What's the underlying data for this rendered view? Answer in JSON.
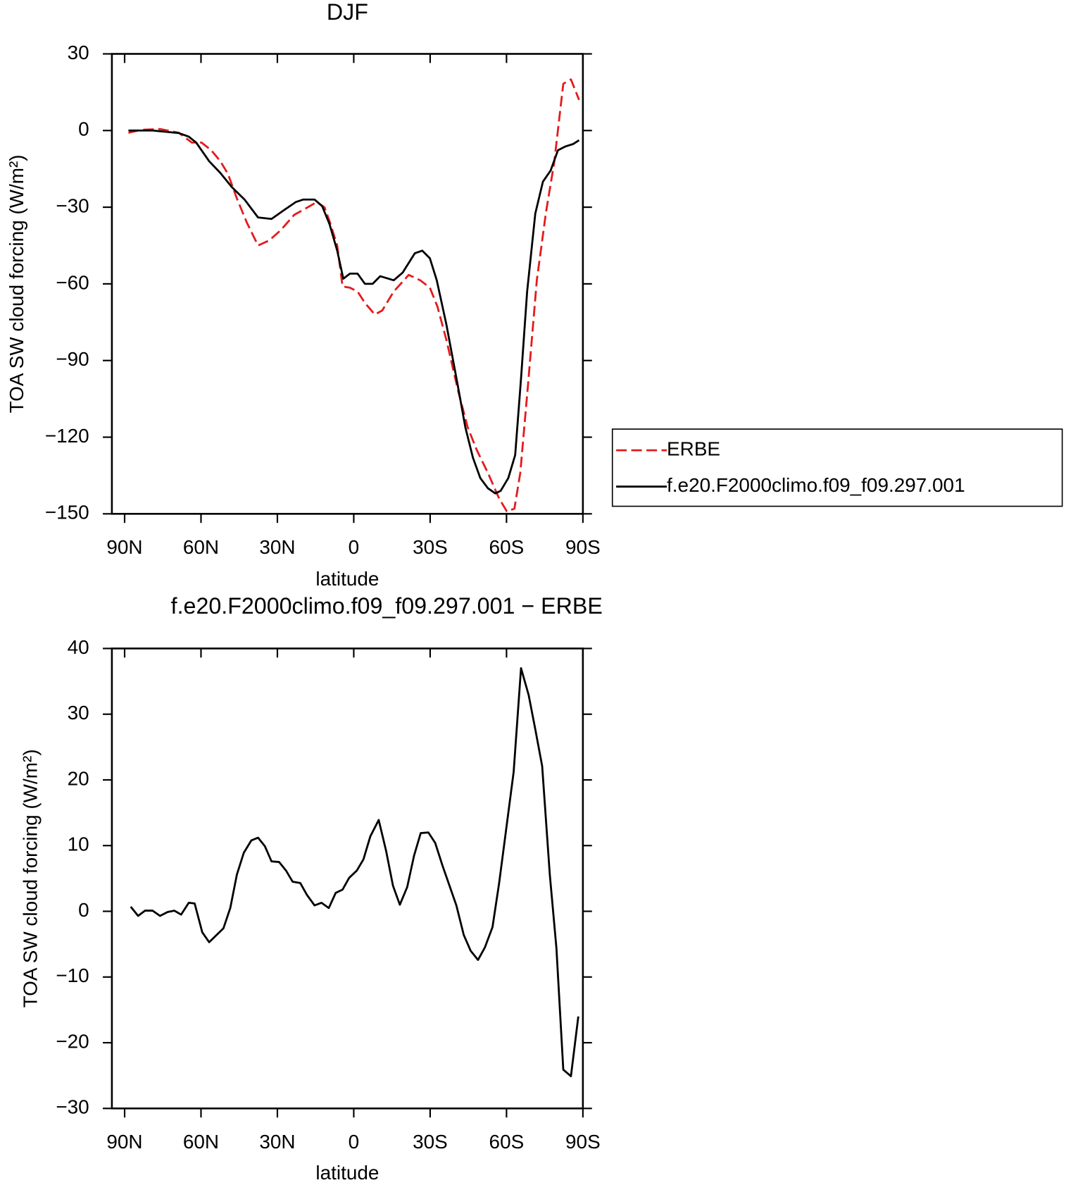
{
  "chart_data": [
    {
      "type": "line",
      "title": "DJF",
      "xlabel": "latitude",
      "ylabel": "TOA SW cloud forcing (W/m²)",
      "xlim": [
        95,
        -90
      ],
      "ylim": [
        -150,
        30
      ],
      "xticks": [
        {
          "value": 90,
          "label": "90N"
        },
        {
          "value": 60,
          "label": "60N"
        },
        {
          "value": 30,
          "label": "30N"
        },
        0,
        {
          "value": -30,
          "label": "30S"
        },
        {
          "value": -60,
          "label": "60S"
        },
        {
          "value": -90,
          "label": "90S"
        }
      ],
      "yticks": [
        {
          "value": -150,
          "label": "−150"
        },
        {
          "value": -120,
          "label": "−120"
        },
        {
          "value": -90,
          "label": "−90"
        },
        {
          "value": -60,
          "label": "−60"
        },
        {
          "value": -30,
          "label": "−30"
        },
        0,
        30
      ],
      "legend": "right",
      "series": [
        {
          "name": "ERBE",
          "color": "#e41a1c",
          "linestyle": "dashed",
          "x": [
            88.5,
            83.5,
            76.1,
            68.7,
            63.6,
            59.8,
            56.0,
            52.4,
            49.4,
            45.9,
            42.0,
            37.6,
            33.2,
            28.7,
            23.4,
            19.8,
            14.5,
            11.5,
            9.5,
            6.5,
            4.4,
            1.5,
            -1.5,
            -4.4,
            -8.3,
            -11.2,
            -15.7,
            -21.6,
            -26.1,
            -29.9,
            -32.9,
            -36.4,
            -40.9,
            -44.7,
            -48.3,
            -52.7,
            -57.1,
            -60.1,
            -63.1,
            -65.4,
            -68.4,
            -71.9,
            -75.5,
            -78.7,
            -82.3,
            -85.3,
            -88.5
          ],
          "values": [
            -0.9,
            0.3,
            0.6,
            -0.9,
            -4.7,
            -4.7,
            -7.7,
            -12,
            -17,
            -26.6,
            -36,
            -45,
            -43,
            -39,
            -33,
            -31,
            -28,
            -30,
            -35.5,
            -45,
            -61,
            -61.5,
            -63,
            -67.5,
            -72,
            -70.4,
            -63,
            -56.5,
            -58.6,
            -61.5,
            -69,
            -82,
            -101.5,
            -116,
            -125,
            -134,
            -144,
            -149,
            -148,
            -134,
            -100,
            -58.6,
            -32,
            -12.7,
            18.3,
            20,
            12
          ]
        },
        {
          "name": "f.e20.F2000climo.f09_f09.297.001",
          "color": "#000000",
          "linestyle": "solid",
          "x": [
            88.5,
            79.0,
            68.7,
            64.8,
            61.9,
            56.8,
            52.4,
            48.0,
            42.9,
            37.6,
            32.3,
            27.2,
            22.8,
            19.8,
            15.4,
            12.4,
            9.5,
            6.5,
            4.1,
            1.5,
            -1.5,
            -4.4,
            -7.4,
            -10.4,
            -15.7,
            -19.2,
            -24.0,
            -26.9,
            -29.9,
            -32.6,
            -36.4,
            -40.9,
            -43.8,
            -46.8,
            -49.7,
            -52.7,
            -55.6,
            -57.7,
            -60.7,
            -63.4,
            -65.7,
            -68.1,
            -71.3,
            -74.3,
            -77.3,
            -80.2,
            -83.2,
            -86.1,
            -88.5
          ],
          "values": [
            0,
            0,
            -1,
            -2.4,
            -4.7,
            -12,
            -16.6,
            -22,
            -27,
            -34,
            -34.6,
            -31,
            -28,
            -27,
            -27,
            -29.6,
            -36.7,
            -47,
            -58,
            -56,
            -56,
            -60,
            -60,
            -57,
            -58.6,
            -55.6,
            -48,
            -47,
            -50,
            -58.6,
            -76,
            -100,
            -116,
            -128,
            -136,
            -140,
            -142,
            -141,
            -136,
            -127,
            -97,
            -63,
            -32.5,
            -20,
            -15.7,
            -7.7,
            -6.2,
            -5.3,
            -3.8
          ]
        }
      ]
    },
    {
      "type": "line",
      "title": "f.e20.F2000climo.f09_f09.297.001 − ERBE",
      "xlabel": "latitude",
      "ylabel": "TOA SW cloud forcing (W/m²)",
      "xlim": [
        95,
        -90
      ],
      "ylim": [
        -30,
        40
      ],
      "xticks": [
        {
          "value": 90,
          "label": "90N"
        },
        {
          "value": 60,
          "label": "60N"
        },
        {
          "value": 30,
          "label": "30N"
        },
        0,
        {
          "value": -30,
          "label": "30S"
        },
        {
          "value": -60,
          "label": "60S"
        },
        {
          "value": -90,
          "label": "90S"
        }
      ],
      "yticks": [
        {
          "value": -30,
          "label": "−30"
        },
        {
          "value": -20,
          "label": "−20"
        },
        {
          "value": -10,
          "label": "−10"
        },
        0,
        10,
        20,
        30,
        40
      ],
      "series": [
        {
          "color": "#000000",
          "linestyle": "solid",
          "x": [
            87.6,
            84.7,
            82.0,
            79.0,
            76.1,
            73.1,
            70.5,
            67.8,
            64.8,
            62.5,
            59.5,
            56.8,
            51.2,
            48.5,
            45.9,
            43.2,
            40.2,
            37.6,
            34.9,
            32.3,
            29.3,
            26.6,
            24.0,
            21.0,
            18.4,
            15.4,
            12.7,
            9.8,
            7.1,
            4.4,
            1.8,
            -1.2,
            -3.8,
            -6.5,
            -9.8,
            -12.7,
            -15.4,
            -18.1,
            -21.0,
            -23.7,
            -26.3,
            -29.3,
            -32.0,
            -34.9,
            -37.6,
            -40.3,
            -43.2,
            -45.9,
            -48.8,
            -51.5,
            -54.5,
            -57.1,
            -59.8,
            -62.8,
            -65.7,
            -68.7,
            -71.3,
            -74.0,
            -77.0,
            -79.6,
            -82.3,
            -85.3,
            -88.2
          ],
          "values": [
            0.7,
            -0.7,
            0.1,
            0.1,
            -0.7,
            -0.1,
            0.1,
            -0.5,
            1.3,
            1.2,
            -3.2,
            -4.7,
            -2.6,
            0.5,
            5.6,
            8.9,
            10.8,
            11.2,
            9.9,
            7.6,
            7.5,
            6.2,
            4.5,
            4.3,
            2.5,
            0.9,
            1.3,
            0.5,
            2.8,
            3.3,
            5.1,
            6.2,
            7.9,
            11.4,
            13.9,
            9.2,
            3.9,
            1.0,
            3.7,
            8.5,
            11.9,
            12.0,
            10.4,
            6.9,
            3.9,
            0.9,
            -3.6,
            -6.0,
            -7.4,
            -5.5,
            -2.4,
            4.3,
            12.3,
            21.2,
            37.0,
            32.9,
            27.7,
            22.1,
            5.6,
            -5.6,
            -24.1,
            -25.1,
            -16.0
          ]
        }
      ]
    }
  ]
}
